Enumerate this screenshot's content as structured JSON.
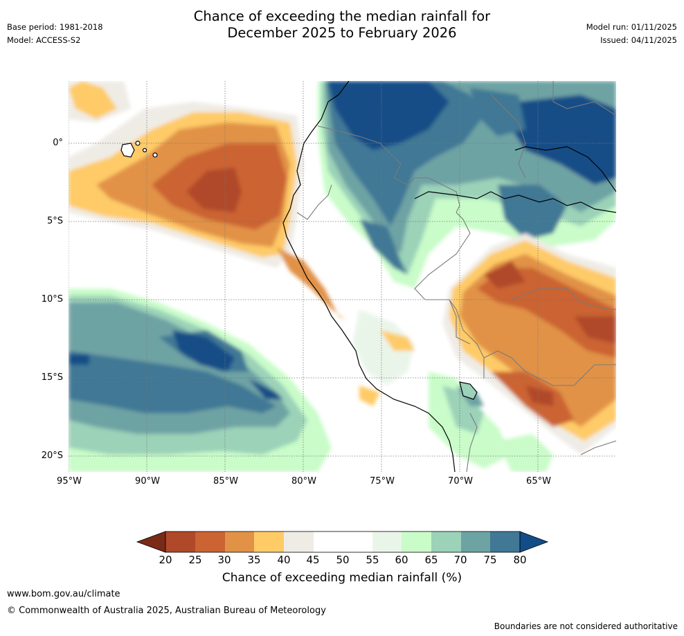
{
  "title": {
    "line1": "Chance of exceeding the median rainfall for",
    "line2": "December 2025 to February 2026"
  },
  "meta_left": {
    "base_period": "Base period: 1981-2018",
    "model": "Model: ACCESS-S2"
  },
  "meta_right": {
    "model_run": "Model run: 01/11/2025",
    "issued": "Issued: 04/11/2025"
  },
  "map": {
    "lat_labels": [
      "0°",
      "5°S",
      "10°S",
      "15°S",
      "20°S"
    ],
    "lon_labels": [
      "95°W",
      "90°W",
      "85°W",
      "80°W",
      "75°W",
      "70°W",
      "65°W"
    ]
  },
  "colorbar": {
    "ticks": [
      "20",
      "25",
      "30",
      "35",
      "40",
      "45",
      "50",
      "55",
      "60",
      "65",
      "70",
      "75",
      "80"
    ],
    "label": "Chance of exceeding median rainfall (%)",
    "colors": {
      "below_20": "#7a2a17",
      "c20_25": "#b0482a",
      "c25_30": "#cb6333",
      "c30_35": "#e19246",
      "c35_40": "#fecb67",
      "c40_45": "#efece6",
      "c45_50": "#ffffff",
      "c50_55": "#ffffff",
      "c55_60": "#eaf5ea",
      "c60_65": "#c9fcc9",
      "c65_70": "#9bd2b8",
      "c70_75": "#6ea3a4",
      "c75_80": "#407895",
      "above_80": "#124d87"
    }
  },
  "footer": {
    "url": "www.bom.gov.au/climate",
    "copyright": "© Commonwealth of Australia 2025, Australian Bureau of Meteorology",
    "note": "Boundaries are not considered authoritative"
  }
}
